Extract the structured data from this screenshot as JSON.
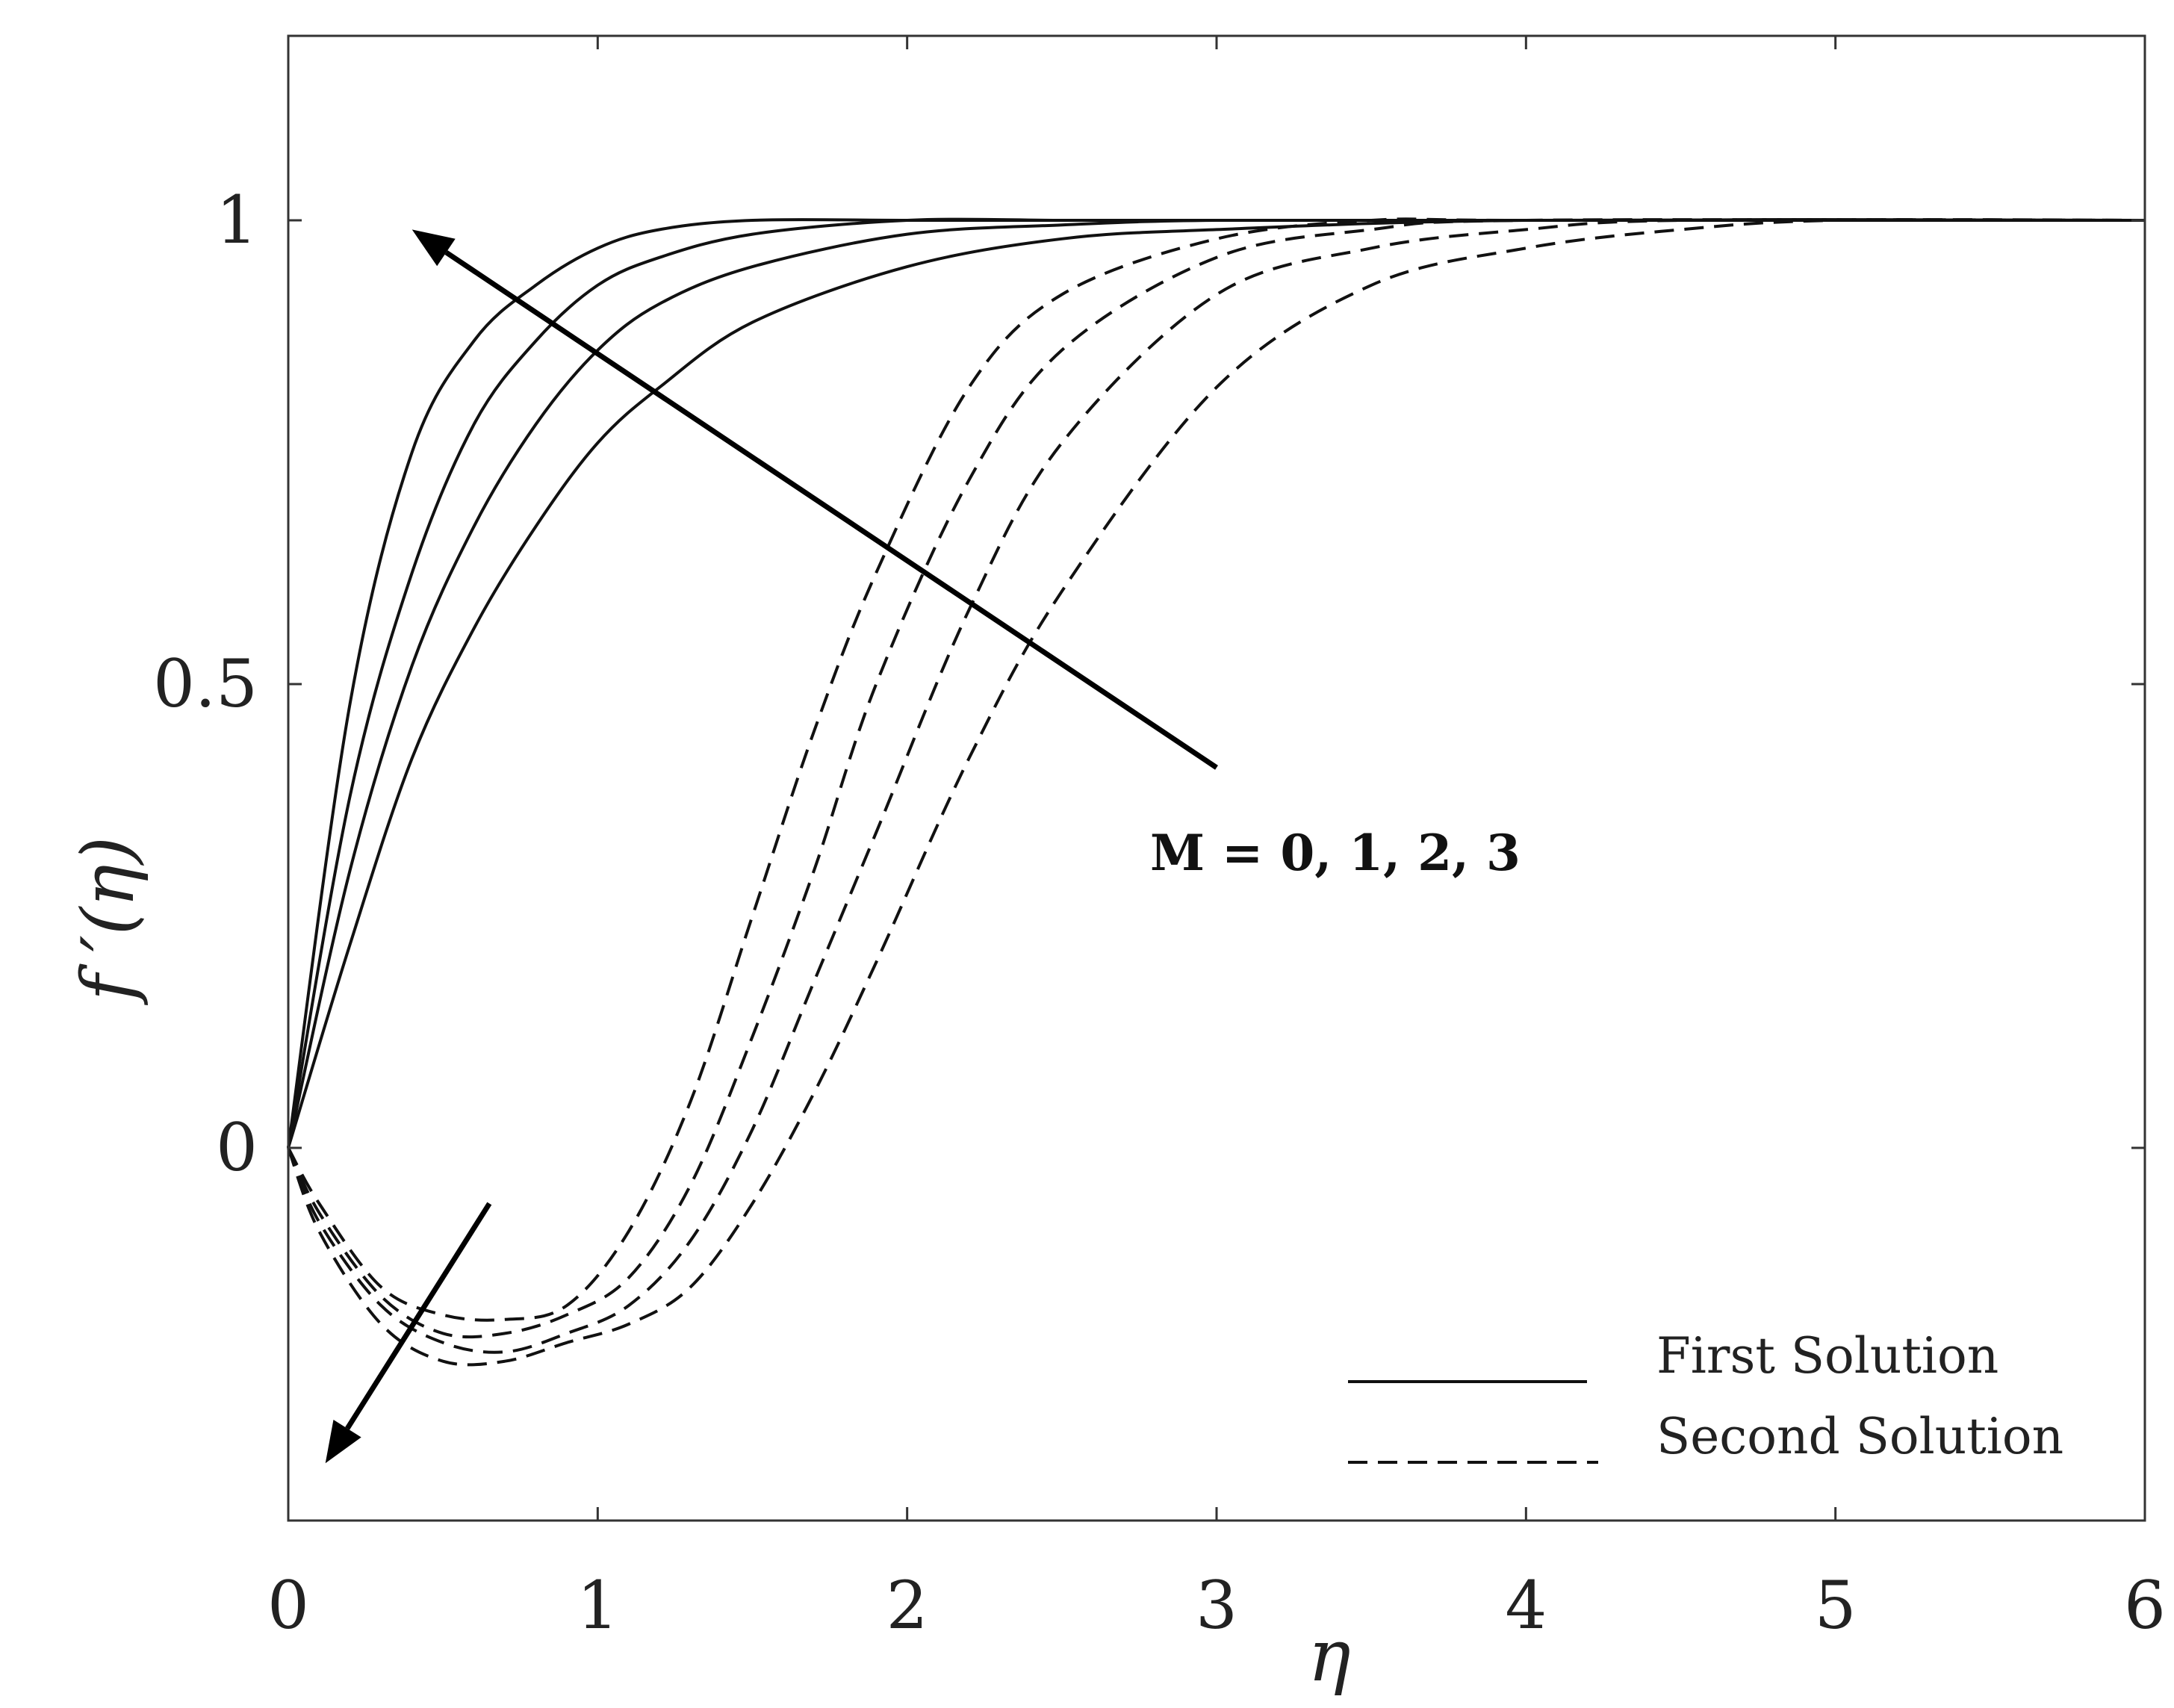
{
  "chart_data": {
    "type": "line",
    "xlabel": "η",
    "ylabel": "f ′(η)",
    "xlim": [
      0,
      6
    ],
    "ylim": [
      -0.4,
      1.2
    ],
    "x_ticks": [
      "0",
      "1",
      "2",
      "3",
      "4",
      "5",
      "6"
    ],
    "y_ticks": [
      "0",
      "0.5",
      "1"
    ],
    "x_tick_values": [
      0,
      1,
      2,
      3,
      4,
      5,
      6
    ],
    "y_tick_values": [
      0,
      0.5,
      1
    ],
    "grid": false,
    "legend": {
      "placement": "bottom-right",
      "entries": [
        {
          "label": "First Solution",
          "style": "solid"
        },
        {
          "label": "Second Solution",
          "style": "dashed"
        }
      ]
    },
    "annotation": "M = 0, 1, 2, 3",
    "series": [
      {
        "group": "first",
        "style": "solid",
        "x": [
          0,
          0.2,
          0.4,
          0.6,
          0.8,
          1.0,
          1.2,
          1.5,
          2.0,
          2.5,
          3.0,
          4.0,
          6.0
        ],
        "y": [
          0,
          0.48,
          0.75,
          0.87,
          0.93,
          0.97,
          0.99,
          1.0,
          1.0,
          1.0,
          1.0,
          1.0,
          1.0
        ]
      },
      {
        "group": "first",
        "style": "solid",
        "x": [
          0,
          0.2,
          0.4,
          0.6,
          0.8,
          1.0,
          1.2,
          1.5,
          2.0,
          2.5,
          3.0,
          4.0,
          6.0
        ],
        "y": [
          0,
          0.38,
          0.62,
          0.78,
          0.87,
          0.93,
          0.96,
          0.985,
          1.0,
          1.0,
          1.0,
          1.0,
          1.0
        ]
      },
      {
        "group": "first",
        "style": "solid",
        "x": [
          0,
          0.2,
          0.4,
          0.6,
          0.8,
          1.0,
          1.2,
          1.5,
          2.0,
          2.5,
          3.0,
          4.0,
          6.0
        ],
        "y": [
          0,
          0.3,
          0.52,
          0.67,
          0.78,
          0.86,
          0.91,
          0.95,
          0.985,
          0.995,
          1.0,
          1.0,
          1.0
        ]
      },
      {
        "group": "first",
        "style": "solid",
        "x": [
          0,
          0.2,
          0.4,
          0.6,
          0.8,
          1.0,
          1.2,
          1.5,
          2.0,
          2.5,
          3.0,
          4.0,
          6.0
        ],
        "y": [
          0,
          0.22,
          0.42,
          0.56,
          0.67,
          0.76,
          0.82,
          0.89,
          0.95,
          0.98,
          0.99,
          1.0,
          1.0
        ]
      },
      {
        "group": "second",
        "style": "dashed",
        "x": [
          0,
          0.1,
          0.3,
          0.5,
          0.7,
          0.9,
          1.1,
          1.3,
          1.5,
          1.7,
          1.9,
          2.2,
          2.5,
          3.0,
          3.5,
          4.0,
          6.0
        ],
        "y": [
          0,
          -0.06,
          -0.15,
          -0.18,
          -0.185,
          -0.17,
          -0.09,
          0.05,
          0.25,
          0.45,
          0.62,
          0.82,
          0.92,
          0.98,
          1.0,
          1.0,
          1.0
        ]
      },
      {
        "group": "second",
        "style": "dashed",
        "x": [
          0,
          0.1,
          0.3,
          0.5,
          0.7,
          0.9,
          1.1,
          1.3,
          1.5,
          1.7,
          1.9,
          2.2,
          2.5,
          3.0,
          3.5,
          4.0,
          6.0
        ],
        "y": [
          0,
          -0.07,
          -0.16,
          -0.2,
          -0.2,
          -0.18,
          -0.14,
          -0.04,
          0.12,
          0.3,
          0.5,
          0.72,
          0.86,
          0.96,
          0.99,
          1.0,
          1.0
        ]
      },
      {
        "group": "second",
        "style": "dashed",
        "x": [
          0,
          0.1,
          0.3,
          0.5,
          0.7,
          0.9,
          1.1,
          1.3,
          1.5,
          1.7,
          1.9,
          2.2,
          2.5,
          3.0,
          3.5,
          4.0,
          4.5,
          6.0
        ],
        "y": [
          0,
          -0.08,
          -0.17,
          -0.21,
          -0.22,
          -0.2,
          -0.17,
          -0.1,
          0.02,
          0.18,
          0.34,
          0.58,
          0.76,
          0.92,
          0.97,
          0.99,
          1.0,
          1.0
        ]
      },
      {
        "group": "second",
        "style": "dashed",
        "x": [
          0,
          0.1,
          0.3,
          0.5,
          0.7,
          0.9,
          1.1,
          1.3,
          1.5,
          1.7,
          1.9,
          2.2,
          2.5,
          3.0,
          3.5,
          4.0,
          4.5,
          5.0,
          6.0
        ],
        "y": [
          0,
          -0.09,
          -0.19,
          -0.23,
          -0.23,
          -0.21,
          -0.19,
          -0.15,
          -0.06,
          0.06,
          0.2,
          0.42,
          0.6,
          0.82,
          0.93,
          0.97,
          0.99,
          1.0,
          1.0
        ]
      }
    ],
    "arrows": [
      {
        "from": [
          3.0,
          0.41
        ],
        "to": [
          0.4,
          0.99
        ]
      },
      {
        "from": [
          0.65,
          -0.06
        ],
        "to": [
          0.12,
          -0.34
        ]
      }
    ]
  }
}
